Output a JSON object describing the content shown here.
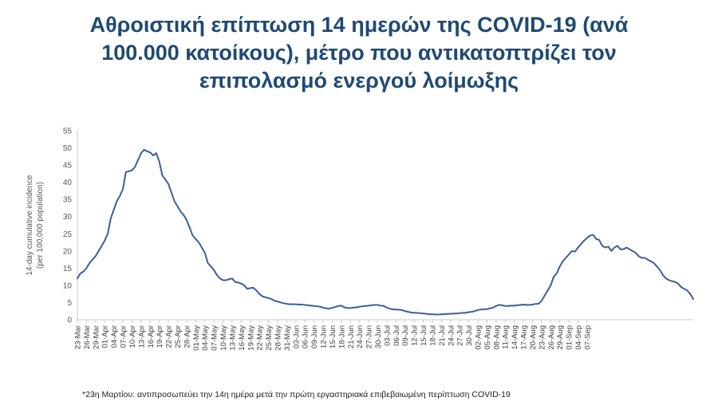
{
  "title_lines": [
    "Αθροιστική επίπτωση 14 ημερών της COVID-19 (ανά",
    "100.000 κατοίκους), μέτρο που αντικατοπτρίζει τον",
    "επιπολασμό ενεργού λοίμωξης"
  ],
  "footnote": "*23η Μαρτίου: αντιπροσωπεύει την 14η ημέρα μετά την πρώτη εργαστηριακά επιβεβαιωμένη περίπτωση COVID-19",
  "chart_data": {
    "type": "line",
    "title": "",
    "ylabel_lines": [
      "14-day cumulative incidence",
      "(per 100,000 population)"
    ],
    "xlabel": "",
    "ylim": [
      0,
      55
    ],
    "yticks": [
      0,
      5,
      10,
      15,
      20,
      25,
      30,
      35,
      40,
      45,
      50,
      55
    ],
    "grid": false,
    "legend": "none",
    "line_color": "#3b5f9a",
    "x_start_label": "23-Mar",
    "x_tick_labels": [
      "23-Mar",
      "26-Mar",
      "29-Mar",
      "01-Apr",
      "04-Apr",
      "07-Apr",
      "10-Apr",
      "13-Apr",
      "16-Apr",
      "19-Apr",
      "22-Apr",
      "25-Apr",
      "28-Apr",
      "01-May",
      "04-May",
      "07-May",
      "10-May",
      "13-May",
      "16-May",
      "19-May",
      "22-May",
      "25-May",
      "28-May",
      "31-May",
      "03-Jun",
      "06-Jun",
      "09-Jun",
      "12-Jun",
      "15-Jun",
      "18-Jun",
      "21-Jun",
      "24-Jun",
      "27-Jun",
      "30-Jun",
      "03-Jul",
      "06-Jul",
      "09-Jul",
      "12-Jul",
      "15-Jul",
      "18-Jul",
      "21-Jul",
      "24-Jul",
      "27-Jul",
      "30-Jul",
      "02-Aug",
      "05-Aug",
      "08-Aug",
      "11-Aug",
      "14-Aug",
      "17-Aug",
      "20-Aug",
      "23-Aug",
      "26-Aug",
      "29-Aug",
      "01-Sep",
      "04-Sep",
      "07-Sep"
    ],
    "series": [
      {
        "values": [
          12,
          13.5,
          14,
          15,
          16.5,
          17.5,
          18.5,
          20,
          21.5,
          23,
          25,
          29.5,
          32,
          34.5,
          36,
          38,
          43,
          43.2,
          43.5,
          44.5,
          46.5,
          48.5,
          49.5,
          49,
          48.7,
          47.8,
          48.5,
          46,
          42,
          40.8,
          39.5,
          37,
          34.5,
          33,
          31.5,
          30.5,
          29,
          26.8,
          24.5,
          23.5,
          22.5,
          21,
          19.5,
          16.5,
          15.5,
          14.5,
          13,
          12,
          11.5,
          11.5,
          11.8,
          12,
          11,
          10.8,
          10.5,
          10,
          9,
          9.2,
          9.3,
          8.5,
          7.5,
          6.8,
          6.5,
          6.3,
          6,
          5.5,
          5.3,
          5,
          4.8,
          4.6,
          4.5,
          4.5,
          4.5,
          4.4,
          4.4,
          4.3,
          4.2,
          4.1,
          4,
          3.9,
          3.8,
          3.5,
          3.3,
          3.2,
          3.5,
          3.7,
          4,
          4.1,
          3.6,
          3.4,
          3.4,
          3.5,
          3.6,
          3.8,
          3.9,
          4,
          4.1,
          4.2,
          4.3,
          4.3,
          4.1,
          4,
          3.5,
          3.2,
          3,
          3,
          2.9,
          2.8,
          2.5,
          2.3,
          2.1,
          2,
          2,
          1.9,
          1.8,
          1.7,
          1.6,
          1.6,
          1.5,
          1.5,
          1.6,
          1.6,
          1.7,
          1.7,
          1.8,
          1.8,
          1.9,
          2,
          2,
          2.2,
          2.3,
          2.5,
          2.8,
          3,
          3,
          3.1,
          3.3,
          3.5,
          4,
          4.3,
          4.2,
          4,
          4,
          4.1,
          4.1,
          4.2,
          4.3,
          4.4,
          4.3,
          4.3,
          4.4,
          4.6,
          4.6,
          5.5,
          7,
          8.5,
          10,
          12.5,
          13.5,
          15.5,
          17,
          18,
          19,
          20,
          19.8,
          21,
          22,
          23,
          23.8,
          24.5,
          24.7,
          23.5,
          23.2,
          21.5,
          21,
          21.3,
          20,
          21,
          21.5,
          20.5,
          20.5,
          21,
          20.5,
          20,
          19.5,
          18.5,
          18,
          18,
          17.5,
          17,
          16.5,
          15.5,
          14.5,
          13,
          12,
          11.5,
          11.2,
          11,
          10.5,
          9.5,
          9,
          8.5,
          7.5,
          6
        ]
      }
    ]
  }
}
